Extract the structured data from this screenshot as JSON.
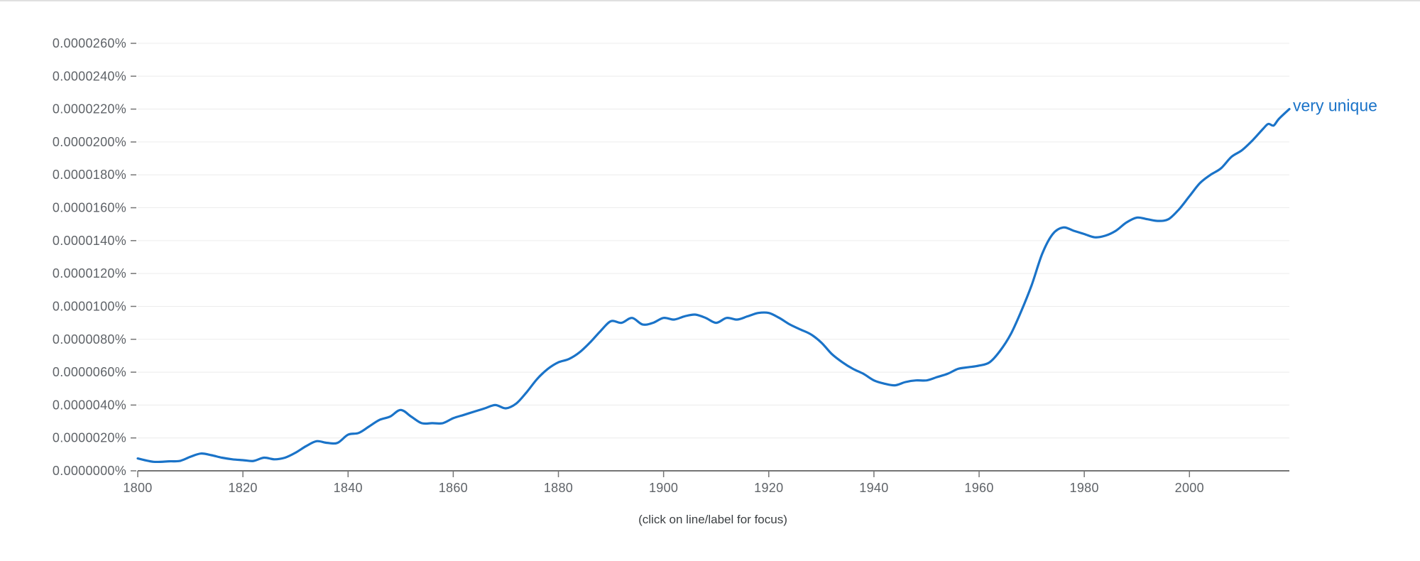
{
  "hint_text": "(click on line/label for focus)",
  "colors": {
    "series": "#1a73c8",
    "axis": "#757575",
    "grid": "#ececec",
    "tick_text": "#5f6368"
  },
  "chart_data": {
    "type": "line",
    "title": "",
    "xlabel": "",
    "ylabel": "",
    "xlim": [
      1800,
      2019
    ],
    "ylim": [
      0,
      2.6e-05
    ],
    "y_unit": "percent",
    "x_ticks": [
      1800,
      1820,
      1840,
      1860,
      1880,
      1900,
      1920,
      1940,
      1960,
      1980,
      2000
    ],
    "x_tick_labels": [
      "1800",
      "1820",
      "1840",
      "1860",
      "1880",
      "1900",
      "1920",
      "1940",
      "1960",
      "1980",
      "2000"
    ],
    "y_ticks": [
      0,
      2e-06,
      4e-06,
      6e-06,
      8e-06,
      1e-05,
      1.2e-05,
      1.4e-05,
      1.6e-05,
      1.8e-05,
      2e-05,
      2.2e-05,
      2.4e-05,
      2.6e-05
    ],
    "y_tick_labels": [
      "0.0000000%",
      "0.0000020%",
      "0.0000040%",
      "0.0000060%",
      "0.0000080%",
      "0.0000100%",
      "0.0000120%",
      "0.0000140%",
      "0.0000160%",
      "0.0000180%",
      "0.0000200%",
      "0.0000220%",
      "0.0000240%",
      "0.0000260%"
    ],
    "grid": true,
    "series": [
      {
        "name": "very unique",
        "x": [
          1800,
          1803,
          1806,
          1808,
          1810,
          1812,
          1814,
          1816,
          1818,
          1820,
          1822,
          1824,
          1826,
          1828,
          1830,
          1832,
          1834,
          1836,
          1838,
          1840,
          1842,
          1844,
          1846,
          1848,
          1850,
          1852,
          1854,
          1856,
          1858,
          1860,
          1862,
          1864,
          1866,
          1868,
          1870,
          1872,
          1874,
          1876,
          1878,
          1880,
          1882,
          1884,
          1886,
          1888,
          1890,
          1892,
          1894,
          1896,
          1898,
          1900,
          1902,
          1904,
          1906,
          1908,
          1910,
          1912,
          1914,
          1916,
          1918,
          1920,
          1922,
          1924,
          1926,
          1928,
          1930,
          1932,
          1934,
          1936,
          1938,
          1940,
          1942,
          1944,
          1946,
          1948,
          1950,
          1952,
          1954,
          1956,
          1958,
          1960,
          1962,
          1964,
          1966,
          1968,
          1970,
          1972,
          1974,
          1976,
          1978,
          1980,
          1982,
          1984,
          1986,
          1988,
          1990,
          1992,
          1994,
          1996,
          1998,
          2000,
          2002,
          2004,
          2006,
          2008,
          2010,
          2012,
          2014,
          2015,
          2016,
          2017,
          2019
        ],
        "values": [
          7.5e-07,
          5.5e-07,
          5.8e-07,
          6e-07,
          8.5e-07,
          1.05e-06,
          9.5e-07,
          8e-07,
          7e-07,
          6.5e-07,
          6e-07,
          8e-07,
          7e-07,
          8e-07,
          1.1e-06,
          1.5e-06,
          1.8e-06,
          1.7e-06,
          1.7e-06,
          2.2e-06,
          2.3e-06,
          2.7e-06,
          3.1e-06,
          3.3e-06,
          3.7e-06,
          3.3e-06,
          2.9e-06,
          2.9e-06,
          2.9e-06,
          3.2e-06,
          3.4e-06,
          3.6e-06,
          3.8e-06,
          4e-06,
          3.8e-06,
          4.1e-06,
          4.8e-06,
          5.6e-06,
          6.2e-06,
          6.6e-06,
          6.8e-06,
          7.2e-06,
          7.8e-06,
          8.5e-06,
          9.1e-06,
          9e-06,
          9.3e-06,
          8.9e-06,
          9e-06,
          9.3e-06,
          9.2e-06,
          9.4e-06,
          9.5e-06,
          9.3e-06,
          9e-06,
          9.3e-06,
          9.2e-06,
          9.4e-06,
          9.6e-06,
          9.6e-06,
          9.3e-06,
          8.9e-06,
          8.6e-06,
          8.3e-06,
          7.8e-06,
          7.1e-06,
          6.6e-06,
          6.2e-06,
          5.9e-06,
          5.5e-06,
          5.3e-06,
          5.2e-06,
          5.4e-06,
          5.5e-06,
          5.5e-06,
          5.7e-06,
          5.9e-06,
          6.2e-06,
          6.3e-06,
          6.4e-06,
          6.6e-06,
          7.3e-06,
          8.3e-06,
          9.7e-06,
          1.13e-05,
          1.32e-05,
          1.44e-05,
          1.48e-05,
          1.46e-05,
          1.44e-05,
          1.42e-05,
          1.43e-05,
          1.46e-05,
          1.51e-05,
          1.54e-05,
          1.53e-05,
          1.52e-05,
          1.53e-05,
          1.59e-05,
          1.67e-05,
          1.75e-05,
          1.8e-05,
          1.84e-05,
          1.91e-05,
          1.95e-05,
          2.01e-05,
          2.08e-05,
          2.11e-05,
          2.1e-05,
          2.14e-05,
          2.2e-05
        ]
      }
    ]
  }
}
